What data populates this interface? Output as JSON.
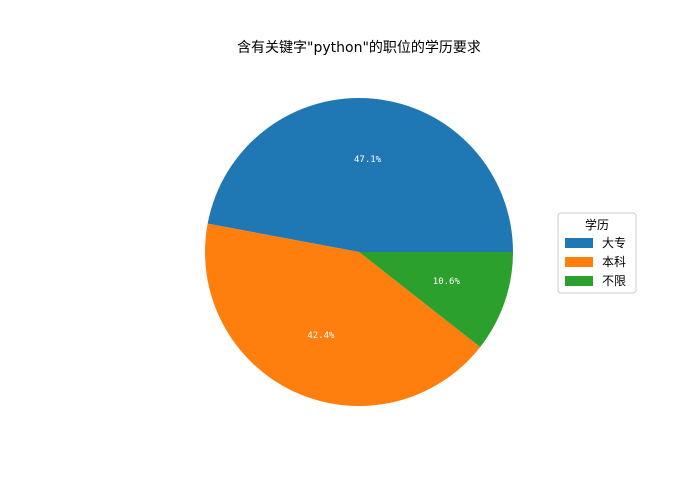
{
  "chart_data": {
    "type": "pie",
    "title": "含有关键字\"python\"的职位的学历要求",
    "categories": [
      "大专",
      "本科",
      "不限"
    ],
    "values": [
      47.1,
      42.4,
      10.6
    ],
    "labels": [
      "47.1%",
      "42.4%",
      "10.6%"
    ],
    "colors": [
      "#1f77b4",
      "#ff7f0e",
      "#2ca02c"
    ],
    "legend": {
      "title": "学历",
      "placement": "right"
    },
    "start_angle_deg": 0,
    "direction": "counterclockwise"
  }
}
